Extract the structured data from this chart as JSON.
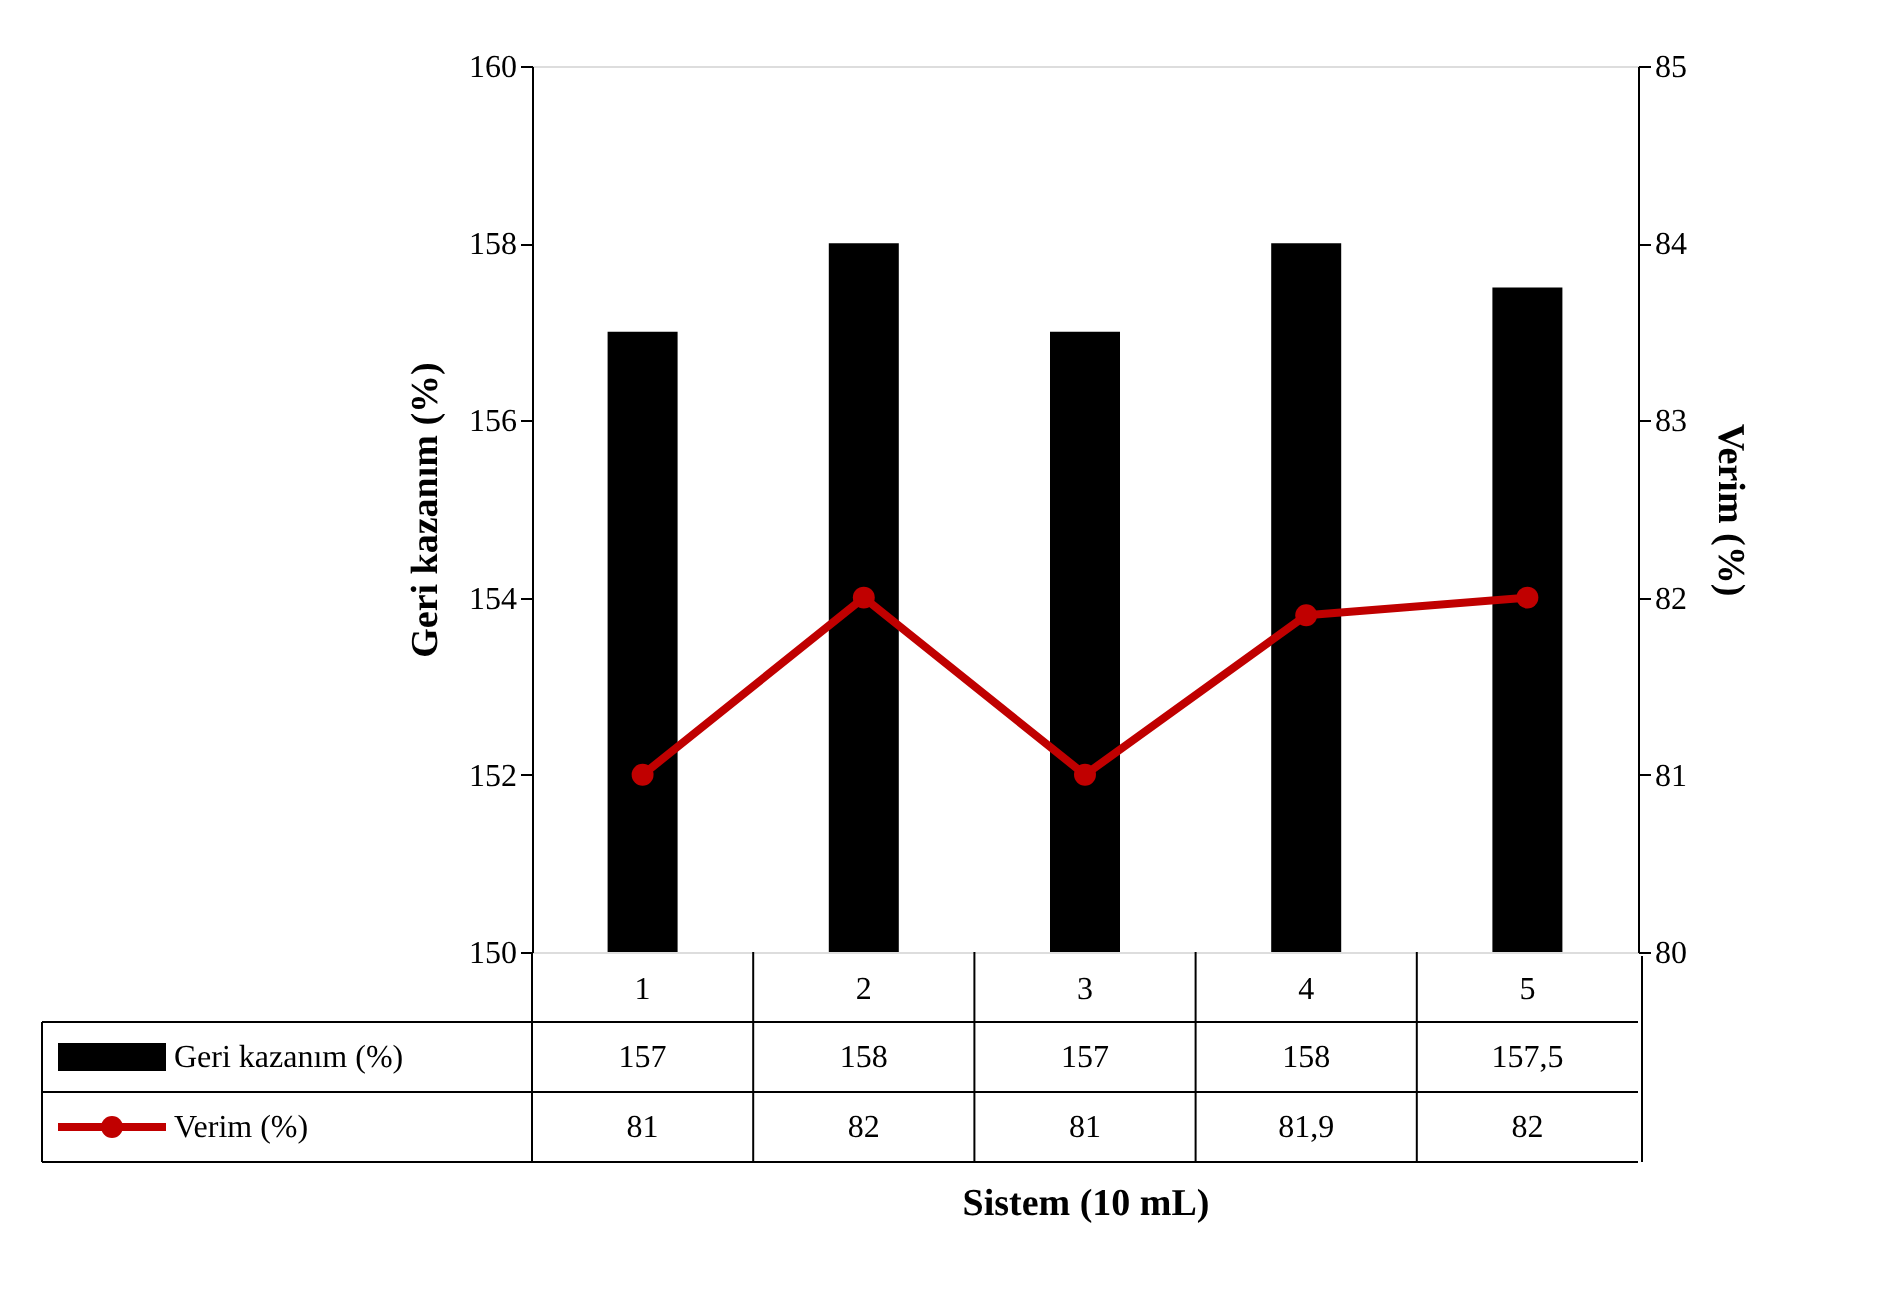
{
  "chart_data": {
    "type": "bar",
    "xlabel": "Sistem (10 mL)",
    "ylabel": "Geri kazanım (%)",
    "y2label": "Verim (%)",
    "categories": [
      "1",
      "2",
      "3",
      "4",
      "5"
    ],
    "series": [
      {
        "name": "Geri kazanım (%)",
        "color": "#000000",
        "values": [
          157,
          158,
          157,
          158,
          157.5
        ],
        "value_labels": [
          "157",
          "158",
          "157",
          "158",
          "157,5"
        ]
      },
      {
        "name": "Verim (%)",
        "type": "line",
        "axis": "y2",
        "color": "#c00000",
        "values": [
          81,
          82,
          81,
          81.9,
          82
        ],
        "value_labels": [
          "81",
          "82",
          "81",
          "81,9",
          "82"
        ]
      }
    ],
    "ylim": [
      150,
      160
    ],
    "yticks": [
      150,
      152,
      154,
      156,
      158,
      160
    ],
    "y2lim": [
      80,
      85
    ],
    "y2ticks": [
      80,
      81,
      82,
      83,
      84,
      85
    ],
    "marker": "circle",
    "line_style": "solid",
    "legend": "bottom",
    "grid": false
  }
}
